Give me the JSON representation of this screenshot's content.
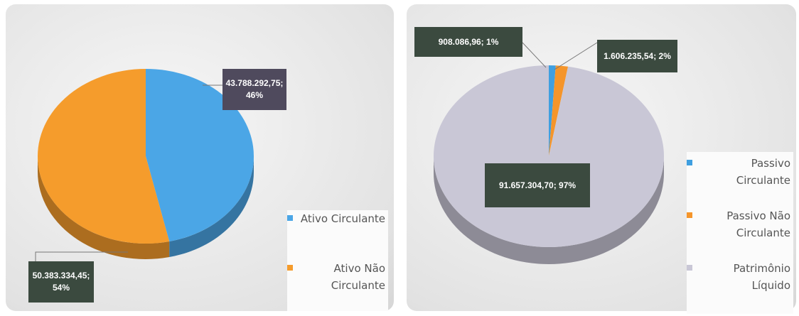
{
  "chart_data": [
    {
      "type": "pie",
      "categories": [
        "Ativo Circulante",
        "Ativo Não Circulante"
      ],
      "values": [
        43788292.75,
        50383334.45
      ],
      "value_labels": [
        "43.788.292,75; 46%",
        "50.383.334,45; 54%"
      ],
      "colors": [
        "#4ba6e6",
        "#f59c2c"
      ]
    },
    {
      "type": "pie",
      "categories": [
        "Passivo Circulante",
        "Passivo Não Circulante",
        "Patrimônio Líquido"
      ],
      "values": [
        908086.96,
        1606235.54,
        91657304.7
      ],
      "value_labels": [
        "908.086,96; 1%",
        "1.606.235,54; 2%",
        "91.657.304,70; 97%"
      ],
      "colors": [
        "#3f9fe0",
        "#f5952a",
        "#c9c7d6"
      ]
    }
  ]
}
